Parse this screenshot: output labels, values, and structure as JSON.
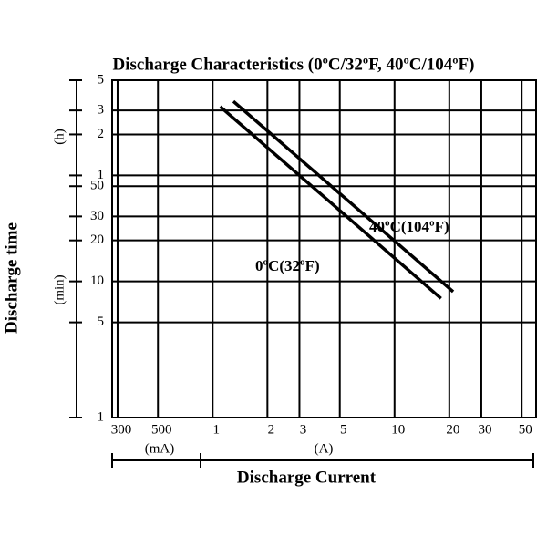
{
  "chart_data": {
    "type": "line",
    "title": "Discharge Characteristics  (0ºC/32ºF, 40ºC/104ºF)",
    "xlabel": "Discharge Current",
    "ylabel": "Discharge time",
    "xunits": [
      "(mA)",
      "(A)"
    ],
    "yunits": [
      "(h)",
      "(min)"
    ],
    "xscale": "log",
    "yscale": "log",
    "grid": true,
    "xlim": [
      0.28,
      60
    ],
    "ylim": [
      0.01667,
      5
    ],
    "xticks": [
      {
        "value": 0.3,
        "label": "300"
      },
      {
        "value": 0.5,
        "label": "500"
      },
      1,
      2,
      3,
      5,
      10,
      20,
      30,
      50
    ],
    "yticks": [
      5,
      3,
      2,
      1,
      {
        "value": 0.8333,
        "label": "50"
      },
      {
        "value": 0.5,
        "label": "30"
      },
      {
        "value": 0.3333,
        "label": "20"
      },
      {
        "value": 0.1667,
        "label": "10"
      },
      {
        "value": 0.08333,
        "label": "5"
      },
      {
        "value": 0.01667,
        "label": "1"
      }
    ],
    "series": [
      {
        "name": "0ºC(32ºF)",
        "color": "#000000",
        "x": [
          1.1,
          18
        ],
        "values": [
          3.2,
          0.125
        ]
      },
      {
        "name": "40ºC(104ºF)",
        "color": "#000000",
        "x": [
          1.3,
          21
        ],
        "values": [
          3.5,
          0.14
        ]
      }
    ]
  }
}
